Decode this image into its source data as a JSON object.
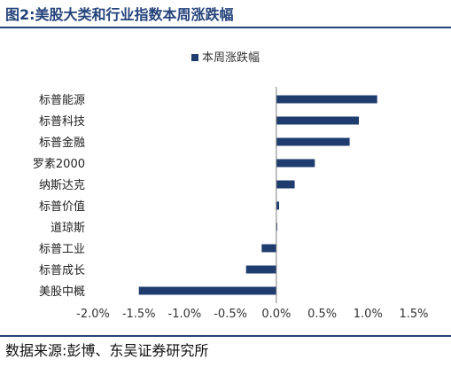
{
  "figure": {
    "label": "图2:",
    "title": "美股大类和行业指数本周涨跌幅",
    "source": "数据来源:彭博、东吴证券研究所"
  },
  "colors": {
    "accent": "#24437a",
    "bar": "#1f3c6e",
    "axis": "#7f7f7f"
  },
  "chart_data": {
    "type": "bar",
    "orientation": "horizontal",
    "categories": [
      "标普能源",
      "标普科技",
      "标普金融",
      "罗素2000",
      "纳斯达克",
      "标普价值",
      "道琼斯",
      "标普工业",
      "标普成长",
      "美股中概"
    ],
    "series": [
      {
        "name": "本周涨跌幅",
        "values": [
          1.1,
          0.9,
          0.8,
          0.42,
          0.2,
          0.03,
          0.01,
          -0.16,
          -0.33,
          -1.5
        ]
      }
    ],
    "xlim": [
      -2.0,
      1.5
    ],
    "xticks": [
      "-2.0%",
      "-1.5%",
      "-1.0%",
      "-0.5%",
      "0.0%",
      "0.5%",
      "1.0%",
      "1.5%"
    ],
    "xtick_values": [
      -2.0,
      -1.5,
      -1.0,
      -0.5,
      0.0,
      0.5,
      1.0,
      1.5
    ],
    "legend_position": "top-center",
    "grid": false
  }
}
